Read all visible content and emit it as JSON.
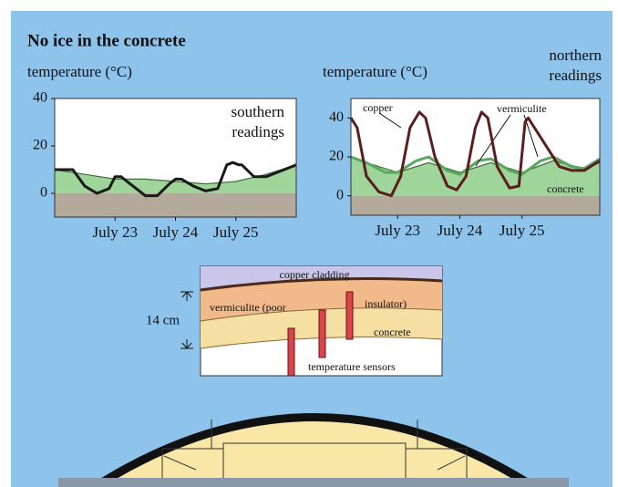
{
  "title": "No ice in the concrete",
  "chart_data": [
    {
      "type": "line",
      "y_label": "temperature (°C)",
      "subtitle": "southern readings",
      "xlim": [
        22,
        26
      ],
      "xticks": [
        {
          "value": 23,
          "label": "July 23"
        },
        {
          "value": 24,
          "label": "July 24"
        },
        {
          "value": 25,
          "label": "July 25"
        }
      ],
      "ylim": [
        -10,
        40
      ],
      "yticks": [
        0,
        20,
        40
      ],
      "series": [
        {
          "color": "#9fd49a",
          "fill": true,
          "x": [
            22,
            22.5,
            23,
            23.5,
            24,
            24.5,
            25,
            25.5,
            26
          ],
          "values": [
            10,
            8,
            6,
            6,
            5,
            4,
            5,
            8,
            12
          ]
        },
        {
          "color": "#1a1a1a",
          "x": [
            22,
            22.3,
            22.5,
            22.7,
            22.9,
            23,
            23.1,
            23.3,
            23.5,
            23.7,
            23.9,
            24,
            24.1,
            24.3,
            24.5,
            24.7,
            24.85,
            24.95,
            25.05,
            25.1,
            25.3,
            25.5,
            25.7,
            26
          ],
          "values": [
            10,
            10,
            3,
            0,
            2,
            7,
            7,
            3,
            -1,
            -1,
            4,
            6,
            6,
            3,
            1,
            2,
            12,
            13,
            12,
            12,
            7,
            7,
            9,
            12
          ]
        }
      ]
    },
    {
      "type": "line",
      "y_label": "temperature (°C)",
      "subtitle": "northern readings",
      "xlim": [
        22.25,
        26.25
      ],
      "xticks": [
        {
          "value": 23,
          "label": "July 23"
        },
        {
          "value": 24,
          "label": "July 24"
        },
        {
          "value": 25,
          "label": "July 25"
        }
      ],
      "ylim": [
        -10,
        50
      ],
      "yticks": [
        0,
        20,
        40
      ],
      "series": [
        {
          "name": "concrete",
          "color": "#9fd49a",
          "fill": true,
          "x": [
            22.25,
            22.5,
            23,
            23.5,
            24,
            24.5,
            25,
            25.5,
            26,
            26.25
          ],
          "values": [
            20,
            17,
            12,
            17,
            12,
            17,
            12,
            18,
            14,
            17
          ]
        },
        {
          "name": "vermiculite",
          "color": "#5aa860",
          "x": [
            22.25,
            22.5,
            22.8,
            23,
            23.3,
            23.5,
            23.8,
            24,
            24.3,
            24.5,
            24.8,
            25,
            25.3,
            25.5,
            25.8,
            26,
            26.25
          ],
          "values": [
            20,
            17,
            12,
            12,
            18,
            20,
            13,
            11,
            18,
            19,
            13,
            11,
            18,
            20,
            15,
            14,
            19
          ]
        },
        {
          "name": "copper",
          "color": "#5a1e1e",
          "x": [
            22.25,
            22.35,
            22.5,
            22.7,
            22.9,
            23.05,
            23.2,
            23.35,
            23.45,
            23.6,
            23.8,
            23.95,
            24.1,
            24.25,
            24.35,
            24.45,
            24.6,
            24.8,
            24.95,
            25.05,
            25.1,
            25.2,
            25.4,
            25.6,
            25.8,
            26,
            26.25
          ],
          "values": [
            40,
            35,
            10,
            2,
            0,
            10,
            35,
            43,
            40,
            20,
            5,
            3,
            10,
            35,
            43,
            40,
            15,
            4,
            5,
            38,
            40,
            35,
            25,
            15,
            13,
            13,
            18
          ]
        }
      ]
    }
  ],
  "diagram": {
    "copper": "copper cladding",
    "vermiculite": "vermiculite (poor",
    "insulator": "insulator)",
    "concrete": "concrete",
    "sensors": "temperature sensors",
    "depth": "14 cm"
  }
}
